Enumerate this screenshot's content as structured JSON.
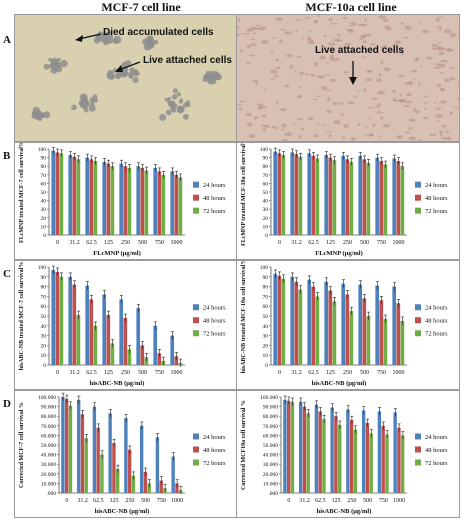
{
  "columns": {
    "left": "MCF-7 cell  line",
    "right": "MCF-10a cell line"
  },
  "rows": [
    "A",
    "B",
    "C",
    "D"
  ],
  "images": {
    "left": {
      "labels": [
        "Died accumulated cells",
        "Live attached cells"
      ],
      "colors": {
        "background": "#d9d0b0",
        "cells": "#8f8f8f"
      }
    },
    "right": {
      "labels": [
        "Live attached cells"
      ],
      "colors": {
        "background": "#d8c0b4",
        "cells": "#b48e80"
      }
    }
  },
  "series_colors": [
    "#4f81bd",
    "#c0504d",
    "#70ad47"
  ],
  "chart_data": [
    {
      "id": "B-left",
      "type": "bar",
      "categories": [
        "0",
        "31.2",
        "62.5",
        "125",
        "250",
        "500",
        "750",
        "1000"
      ],
      "series": [
        {
          "name": "24 hours",
          "values": [
            98,
            93,
            90,
            85,
            83,
            80,
            78,
            74
          ]
        },
        {
          "name": "48 hours",
          "values": [
            96,
            91,
            88,
            83,
            80,
            78,
            74,
            70
          ]
        },
        {
          "name": "72 hours",
          "values": [
            95,
            88,
            86,
            80,
            78,
            75,
            70,
            67
          ]
        }
      ],
      "error": 4,
      "ylim": [
        0,
        100
      ],
      "yticks": [
        0,
        10,
        20,
        30,
        40,
        50,
        60,
        70,
        80,
        90,
        100
      ],
      "ytick_labels": [
        "0",
        "10",
        "20",
        "30",
        "40",
        "50",
        "60",
        "70",
        "80",
        "90",
        "100"
      ],
      "xlabel": "FLcMNP (μg/ml)",
      "ylabel": "FLcMNP treated MCF-7 cell survival%",
      "legend": "right",
      "grid": false
    },
    {
      "id": "B-right",
      "type": "bar",
      "categories": [
        "0",
        "31.2",
        "62.5",
        "125",
        "250",
        "500",
        "750",
        "1000"
      ],
      "series": [
        {
          "name": "24 hours",
          "values": [
            97,
            96,
            95,
            93,
            92,
            92,
            90,
            89
          ]
        },
        {
          "name": "48 hours",
          "values": [
            95,
            94,
            92,
            90,
            88,
            88,
            86,
            86
          ]
        },
        {
          "name": "72 hours",
          "values": [
            93,
            91,
            89,
            87,
            85,
            84,
            82,
            80
          ]
        }
      ],
      "error": 4,
      "ylim": [
        0,
        100
      ],
      "yticks": [
        0,
        10,
        20,
        30,
        40,
        50,
        60,
        70,
        80,
        90,
        100
      ],
      "ytick_labels": [
        "0",
        "10",
        "20",
        "30",
        "40",
        "50",
        "60",
        "70",
        "80",
        "90",
        "100"
      ],
      "xlabel": "FLcMNP (μg/ml)",
      "ylabel": "FLcMNP treated MCF-10a cell survival%",
      "legend": "right",
      "grid": false
    },
    {
      "id": "C-left",
      "type": "bar",
      "categories": [
        "0",
        "31.2",
        "62.5",
        "125",
        "250",
        "500",
        "750",
        "1000"
      ],
      "series": [
        {
          "name": "24 hours",
          "values": [
            97,
            90,
            81,
            72,
            67,
            58,
            40,
            30
          ]
        },
        {
          "name": "48 hours",
          "values": [
            95,
            82,
            67,
            51,
            48,
            20,
            12,
            9
          ]
        },
        {
          "name": "72 hours",
          "values": [
            90,
            51,
            40,
            22,
            16,
            8,
            4,
            2
          ]
        }
      ],
      "error": 4,
      "ylim": [
        0,
        100
      ],
      "yticks": [
        0,
        10,
        20,
        30,
        40,
        50,
        60,
        70,
        80,
        90,
        100
      ],
      "ytick_labels": [
        "0",
        "10",
        "20",
        "30",
        "40",
        "50",
        "60",
        "70",
        "80",
        "90",
        "100"
      ],
      "xlabel": "hisABC-NB (μg/ml)",
      "ylabel": "hisABC-NB treated MCF-7 cell survival%",
      "legend": "right",
      "grid": false
    },
    {
      "id": "C-right",
      "type": "bar",
      "categories": [
        "0",
        "31.2",
        "62.5",
        "125",
        "250",
        "500",
        "750",
        "1000"
      ],
      "series": [
        {
          "name": "24 hours",
          "values": [
            93,
            90,
            87,
            85,
            83,
            82,
            81,
            80
          ]
        },
        {
          "name": "48 hours",
          "values": [
            91,
            85,
            80,
            76,
            72,
            68,
            66,
            63
          ]
        },
        {
          "name": "72 hours",
          "values": [
            88,
            77,
            70,
            65,
            55,
            50,
            47,
            45
          ]
        }
      ],
      "error": 4,
      "ylim": [
        0,
        100
      ],
      "yticks": [
        0,
        10,
        20,
        30,
        40,
        50,
        60,
        70,
        80,
        90,
        100
      ],
      "ytick_labels": [
        "0",
        "10",
        "20",
        "30",
        "40",
        "50",
        "60",
        "70",
        "80",
        "90",
        "100"
      ],
      "xlabel": "hisABC-NB (μg/ml)",
      "ylabel": "hisABC-NB treated MCF-10a cell survival%",
      "legend": "right",
      "grid": false
    },
    {
      "id": "D-left",
      "type": "bar",
      "categories": [
        "0",
        "31.2",
        "62.5",
        "125",
        "250",
        "500",
        "750",
        "1000"
      ],
      "series": [
        {
          "name": "24 hours",
          "values": [
            100,
            97,
            90,
            83,
            78,
            70,
            58,
            38
          ]
        },
        {
          "name": "48 hours",
          "values": [
            98,
            82,
            68,
            52,
            45,
            22,
            13,
            10
          ]
        },
        {
          "name": "72 hours",
          "values": [
            91,
            57,
            40,
            25,
            18,
            10,
            5,
            3
          ]
        }
      ],
      "error": 4,
      "ylim": [
        0,
        100
      ],
      "yticks": [
        0,
        10,
        20,
        30,
        40,
        50,
        60,
        70,
        80,
        90,
        100
      ],
      "ytick_labels": [
        ".000",
        "10.000",
        "20.000",
        "30.000",
        "40.000",
        "50.000",
        "60.000",
        "70.000",
        "80.000",
        "90.000",
        "100.000"
      ],
      "xlabel": "hisABC-NB (μg/ml)",
      "ylabel": "Corrected MCF-7 cell survival %",
      "legend": "right",
      "grid": false
    },
    {
      "id": "D-right",
      "type": "bar",
      "categories": [
        "0",
        "31.2",
        "62.5",
        "125",
        "250",
        "500",
        "750",
        "1000"
      ],
      "series": [
        {
          "name": "24 hours",
          "values": [
            97,
            95,
            92,
            89,
            87,
            86,
            85,
            84
          ]
        },
        {
          "name": "48 hours",
          "values": [
            96,
            90,
            85,
            80,
            76,
            73,
            70,
            68
          ]
        },
        {
          "name": "72 hours",
          "values": [
            95,
            83,
            77,
            71,
            66,
            62,
            61,
            60
          ]
        }
      ],
      "error": 4,
      "ylim": [
        0,
        100
      ],
      "yticks": [
        0,
        10,
        20,
        30,
        40,
        50,
        60,
        70,
        80,
        90,
        100
      ],
      "ytick_labels": [
        ".000",
        "10.000",
        "20.000",
        "30.000",
        "40.000",
        "50.000",
        "60.000",
        "70.000",
        "80.000",
        "90.000",
        "100.000"
      ],
      "xlabel": "hisABC-NB (μg/ml)",
      "ylabel": "Corrected MCF10a cell survival %",
      "legend": "right",
      "grid": false
    }
  ]
}
